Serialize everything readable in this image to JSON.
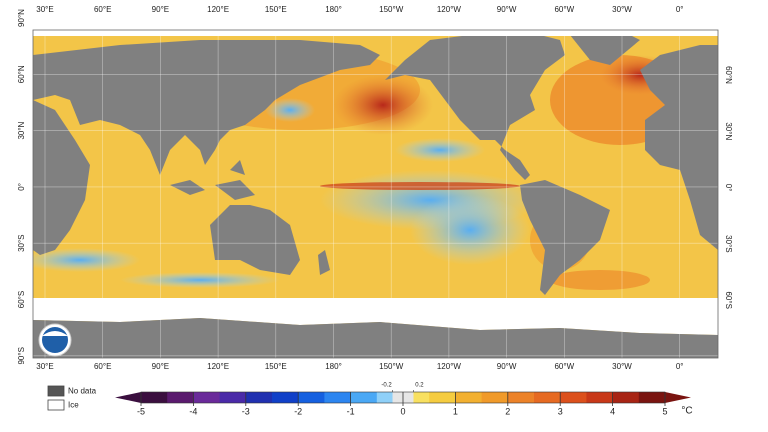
{
  "map": {
    "lon_labels": [
      "30°E",
      "60°E",
      "90°E",
      "120°E",
      "150°E",
      "180°",
      "150°W",
      "120°W",
      "90°W",
      "60°W",
      "30°W",
      "0°"
    ],
    "lat_labels_left": [
      "90°N",
      "60°N",
      "30°N",
      "0°",
      "30°S",
      "60°S",
      "90°S"
    ],
    "lat_labels_right": [
      "60°N",
      "30°N",
      "0°",
      "30°S",
      "60°S"
    ]
  },
  "legend": {
    "items": [
      {
        "label": "No data",
        "color": "#555555"
      },
      {
        "label": "Ice",
        "color": "#ffffff"
      }
    ]
  },
  "colorbar": {
    "ticks": [
      -5,
      -4,
      -3,
      -2,
      -1,
      0,
      1,
      2,
      3,
      4,
      5
    ],
    "neutral_ticks": [
      -0.2,
      0.2
    ],
    "neutral_color": "#e6e6e6",
    "unit": "°C",
    "colors": [
      "#3b0f3f",
      "#5a1a6e",
      "#6a2a9a",
      "#4a2aa8",
      "#2030b0",
      "#1040c8",
      "#1560e0",
      "#2c85f0",
      "#4aa8f5",
      "#8fd0f8",
      "#f8e060",
      "#f5cc40",
      "#f2b030",
      "#f09a2a",
      "#ec8228",
      "#e66a22",
      "#dc501c",
      "#c83818",
      "#a82414",
      "#7a1410"
    ]
  }
}
